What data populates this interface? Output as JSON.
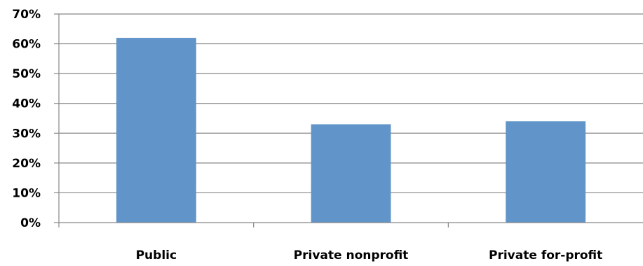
{
  "chart_data": {
    "type": "bar",
    "categories": [
      "Public",
      "Private nonprofit",
      "Private for-profit"
    ],
    "series": [
      {
        "values": [
          62,
          33,
          34
        ]
      }
    ],
    "ylim": [
      0,
      70
    ],
    "yticks": [
      0,
      10,
      20,
      30,
      40,
      50,
      60,
      70
    ],
    "ytick_labels": [
      "0%",
      "10%",
      "20%",
      "30%",
      "40%",
      "50%",
      "60%",
      "70%"
    ],
    "y_unit": "%",
    "grid": true,
    "legend": "none",
    "colors": {
      "bar": "#6194C8",
      "grid": "#878787",
      "axis": "#878787"
    }
  }
}
